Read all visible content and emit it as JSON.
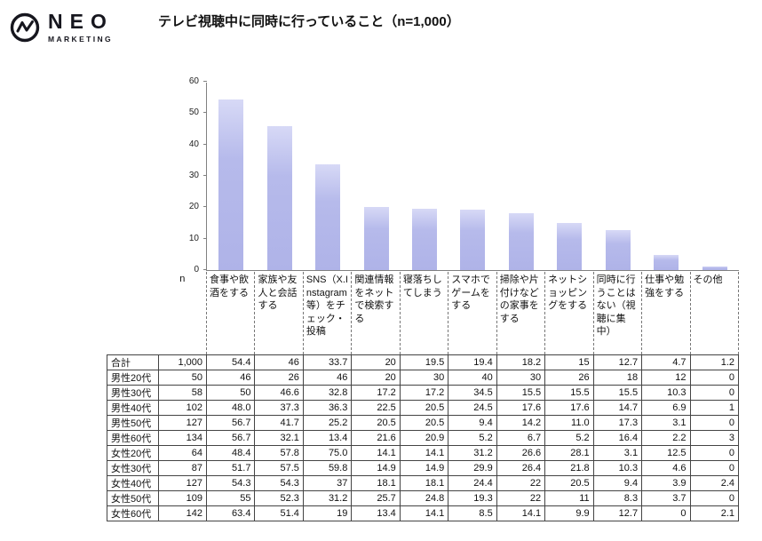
{
  "logo": {
    "name": "NEO",
    "sub": "MARKETING"
  },
  "title": "テレビ視聴中に同時に行っていること（n=1,000）",
  "chart_data": {
    "type": "bar",
    "title": "テレビ視聴中に同時に行っていること（n=1,000）",
    "series_label": "合計",
    "categories": [
      "食事や飲酒をする",
      "家族や友人と会話する",
      "SNS（X.Instagram等）をチェック・投稿",
      "関連情報をネットで検索する",
      "寝落ちしてしまう",
      "スマホでゲームをする",
      "掃除や片付けなどの家事をする",
      "ネットショッピングをする",
      "同時に行うことはない（視聴に集中）",
      "仕事や勉強をする",
      "その他"
    ],
    "values": [
      54.4,
      46,
      33.7,
      20,
      19.5,
      19.4,
      18.2,
      15,
      12.7,
      4.7,
      1.2
    ],
    "ylim": [
      0,
      60
    ],
    "yticks": [
      0,
      10,
      20,
      30,
      40,
      50,
      60
    ],
    "grid": false,
    "legend": "none",
    "bar_color": "#b3b7e9",
    "bar_color_top": "#d7d9f6"
  },
  "table": {
    "n_header": "n",
    "rows": [
      {
        "label": "合計",
        "n": "1,000",
        "values": [
          "54.4",
          "46",
          "33.7",
          "20",
          "19.5",
          "19.4",
          "18.2",
          "15",
          "12.7",
          "4.7",
          "1.2"
        ]
      },
      {
        "label": "男性20代",
        "n": "50",
        "values": [
          "46",
          "26",
          "46",
          "20",
          "30",
          "40",
          "30",
          "26",
          "18",
          "12",
          "0"
        ]
      },
      {
        "label": "男性30代",
        "n": "58",
        "values": [
          "50",
          "46.6",
          "32.8",
          "17.2",
          "17.2",
          "34.5",
          "15.5",
          "15.5",
          "15.5",
          "10.3",
          "0"
        ]
      },
      {
        "label": "男性40代",
        "n": "102",
        "values": [
          "48.0",
          "37.3",
          "36.3",
          "22.5",
          "20.5",
          "24.5",
          "17.6",
          "17.6",
          "14.7",
          "6.9",
          "1"
        ]
      },
      {
        "label": "男性50代",
        "n": "127",
        "values": [
          "56.7",
          "41.7",
          "25.2",
          "20.5",
          "20.5",
          "9.4",
          "14.2",
          "11.0",
          "17.3",
          "3.1",
          "0"
        ]
      },
      {
        "label": "男性60代",
        "n": "134",
        "values": [
          "56.7",
          "32.1",
          "13.4",
          "21.6",
          "20.9",
          "5.2",
          "6.7",
          "5.2",
          "16.4",
          "2.2",
          "3"
        ]
      },
      {
        "label": "女性20代",
        "n": "64",
        "values": [
          "48.4",
          "57.8",
          "75.0",
          "14.1",
          "14.1",
          "31.2",
          "26.6",
          "28.1",
          "3.1",
          "12.5",
          "0"
        ]
      },
      {
        "label": "女性30代",
        "n": "87",
        "values": [
          "51.7",
          "57.5",
          "59.8",
          "14.9",
          "14.9",
          "29.9",
          "26.4",
          "21.8",
          "10.3",
          "4.6",
          "0"
        ]
      },
      {
        "label": "女性40代",
        "n": "127",
        "values": [
          "54.3",
          "54.3",
          "37",
          "18.1",
          "18.1",
          "24.4",
          "22",
          "20.5",
          "9.4",
          "3.9",
          "2.4"
        ]
      },
      {
        "label": "女性50代",
        "n": "109",
        "values": [
          "55",
          "52.3",
          "31.2",
          "25.7",
          "24.8",
          "19.3",
          "22",
          "11",
          "8.3",
          "3.7",
          "0"
        ]
      },
      {
        "label": "女性60代",
        "n": "142",
        "values": [
          "63.4",
          "51.4",
          "19",
          "13.4",
          "14.1",
          "8.5",
          "14.1",
          "9.9",
          "12.7",
          "0",
          "2.1"
        ]
      }
    ]
  }
}
